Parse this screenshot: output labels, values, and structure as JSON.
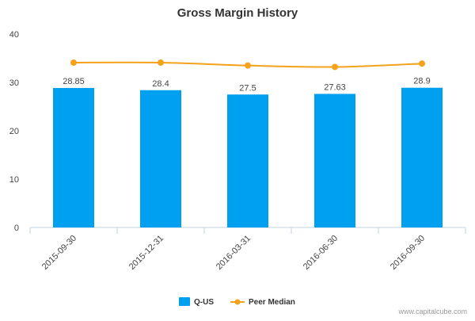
{
  "chart_data": {
    "type": "bar",
    "title": "Gross Margin History",
    "xlabel": "",
    "ylabel": "",
    "ylim": [
      0,
      40
    ],
    "yticks": [
      0,
      10,
      20,
      30,
      40
    ],
    "categories": [
      "2015-09-30",
      "2015-12-31",
      "2016-03-31",
      "2016-06-30",
      "2016-09-30"
    ],
    "series": [
      {
        "name": "Q-US",
        "type": "bar",
        "color": "#00a0f0",
        "values": [
          28.85,
          28.4,
          27.5,
          27.63,
          28.9
        ],
        "data_labels": [
          "28.85",
          "28.4",
          "27.5",
          "27.63",
          "28.9"
        ]
      },
      {
        "name": "Peer Median",
        "type": "line",
        "color": "#f5a21b",
        "values": [
          34.1,
          34.1,
          33.5,
          33.2,
          33.9
        ]
      }
    ],
    "grid": false,
    "legend": "bottom-center"
  },
  "credit": "www.capitalcube.com"
}
